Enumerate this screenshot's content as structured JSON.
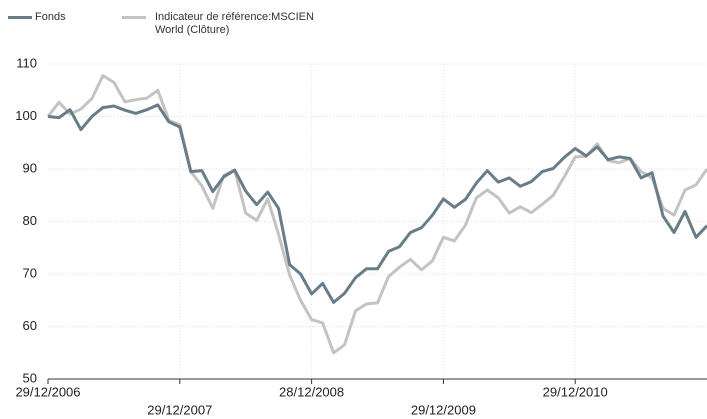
{
  "chart_data": {
    "type": "line",
    "categories": [
      "29/12/2006",
      null,
      null,
      null,
      null,
      null,
      null,
      null,
      null,
      null,
      null,
      null,
      "29/12/2007",
      null,
      null,
      null,
      null,
      null,
      null,
      null,
      null,
      null,
      null,
      null,
      "28/12/2008",
      null,
      null,
      null,
      null,
      null,
      null,
      null,
      null,
      null,
      null,
      null,
      "29/12/2009",
      null,
      null,
      null,
      null,
      null,
      null,
      null,
      null,
      null,
      null,
      null,
      "29/12/2010",
      null,
      null,
      null,
      null,
      null,
      null,
      null,
      null,
      null,
      null,
      null,
      null
    ],
    "series": [
      {
        "name": "Indicateur de référence:MSCIEN\nWorld (Clôture)",
        "color": "#c3c3c3",
        "values": [
          100,
          102.7,
          100.5,
          101.4,
          103.4,
          107.8,
          106.5,
          102.8,
          103.2,
          103.5,
          105,
          99.3,
          98.4,
          89.5,
          86.8,
          82.5,
          88.8,
          89.8,
          81.6,
          80.2,
          84.3,
          77.5,
          69.8,
          65,
          61.3,
          60.7,
          55,
          56.5,
          63,
          64.3,
          64.5,
          69.5,
          71.3,
          72.8,
          70.8,
          72.5,
          77,
          76.3,
          79.3,
          84.5,
          86,
          84.5,
          81.6,
          82.8,
          81.7,
          83.3,
          85,
          88.5,
          92.3,
          92.4,
          94.8,
          91.6,
          91.2,
          92,
          89.5,
          88.3,
          82.5,
          81.2,
          86,
          87,
          90
        ]
      },
      {
        "name": "Fonds",
        "color": "#687d88",
        "values": [
          100,
          99.8,
          101.3,
          97.5,
          100,
          101.7,
          102,
          101.2,
          100.6,
          101.3,
          102.2,
          99,
          98,
          89.5,
          89.7,
          85.7,
          88.5,
          89.8,
          85.8,
          83.2,
          85.6,
          82.5,
          71.8,
          70,
          66.2,
          68.2,
          64.6,
          66.3,
          69.3,
          71,
          71,
          74.3,
          75.2,
          77.9,
          78.8,
          81.2,
          84.3,
          82.7,
          84.2,
          87.3,
          89.7,
          87.5,
          88.3,
          86.7,
          87.6,
          89.5,
          90.1,
          92.2,
          93.9,
          92.5,
          94.2,
          91.8,
          92.3,
          92,
          88.3,
          89.3,
          81,
          77.9,
          81.9,
          77,
          79.2
        ]
      }
    ],
    "legend_order": [
      1,
      0
    ],
    "ylim": [
      50,
      110
    ],
    "yticks": [
      50,
      60,
      70,
      80,
      90,
      100,
      110
    ],
    "grid": true
  }
}
